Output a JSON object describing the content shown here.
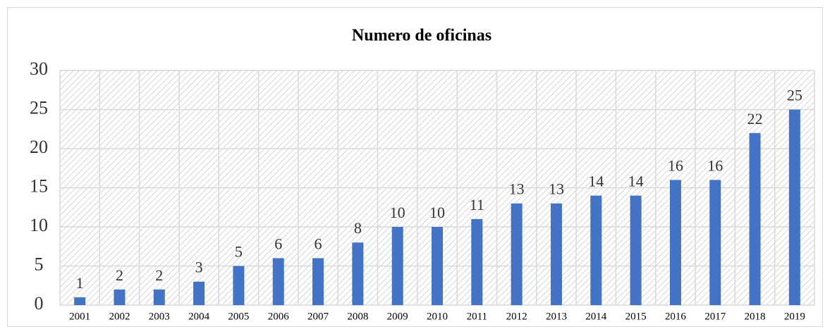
{
  "chart_data": {
    "type": "bar",
    "title": "Numero de oficinas",
    "categories": [
      "2001",
      "2002",
      "2003",
      "2004",
      "2005",
      "2006",
      "2007",
      "2008",
      "2009",
      "2010",
      "2011",
      "2012",
      "2013",
      "2014",
      "2015",
      "2016",
      "2017",
      "2018",
      "2019"
    ],
    "values": [
      1,
      2,
      2,
      3,
      5,
      6,
      6,
      8,
      10,
      10,
      11,
      13,
      13,
      14,
      14,
      16,
      16,
      22,
      25
    ],
    "color": "#4472c4",
    "ylim": [
      0,
      30
    ],
    "yticks": [
      0,
      5,
      10,
      15,
      20,
      25,
      30
    ],
    "grid": true
  }
}
